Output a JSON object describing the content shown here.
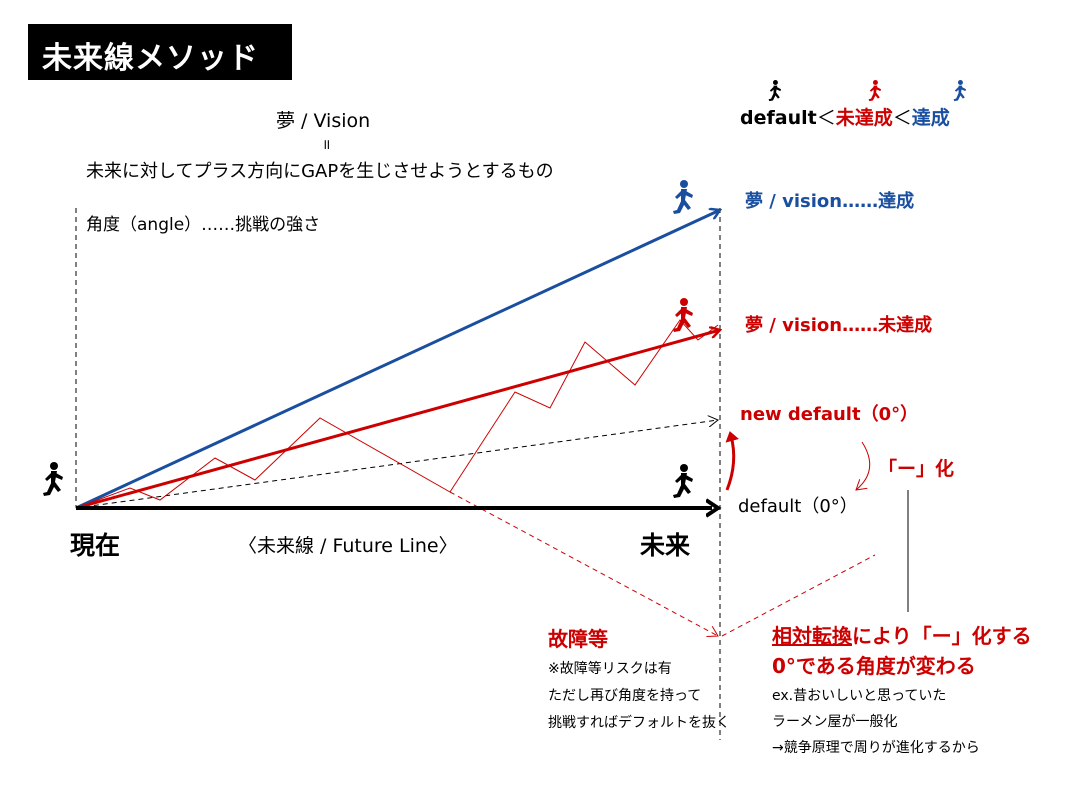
{
  "title": "未来線メソッド",
  "header": {
    "vision": "夢 / Vision",
    "equals": "॥",
    "definition": "未来に対してプラス方向にGAPを生じさせようとするもの",
    "angle_note": "角度（angle）……挑戦の強さ"
  },
  "legend": {
    "default": "default",
    "lt1": "＜",
    "mitassei": "未達成",
    "lt2": "＜",
    "tassei": "達成"
  },
  "lines": {
    "blue_label": "夢 / vision……達成",
    "red_label": "夢 / vision……未達成",
    "new_default": "new default（0°）",
    "default": "default（0°）",
    "generalize": "「ー」化"
  },
  "axis": {
    "present": "現在",
    "future": "未来",
    "future_line": "〈未来線 / Future Line〉"
  },
  "failure": {
    "title": "故障等",
    "note_lines": [
      "※故障等リスクは有",
      "ただし再び角度を持って",
      "挑戦すればデフォルトを抜く"
    ]
  },
  "relative": {
    "title_part1": "相対転換",
    "title_part2": "により「ー」化する",
    "title_line2": "0°である角度が変わる",
    "example_lines": [
      "ex.昔おいしいと思っていた",
      "ラーメン屋が一般化",
      "→競争原理で周りが進化するから"
    ]
  },
  "colors": {
    "black": "#000000",
    "red": "#cc0000",
    "blue": "#1a4fa0"
  },
  "icons": [
    "runner-icon-black",
    "runner-icon-red",
    "runner-icon-blue"
  ]
}
